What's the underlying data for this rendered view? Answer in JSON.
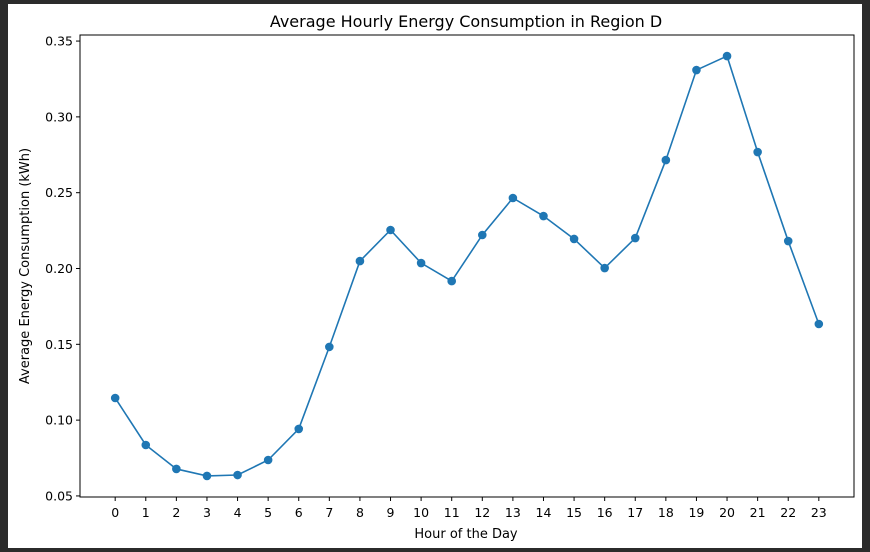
{
  "chart_data": {
    "type": "line",
    "title": "Average Hourly Energy Consumption in Region D",
    "xlabel": "Hour of the Day",
    "ylabel": "Average Energy Consumption (kWh)",
    "x": [
      0,
      1,
      2,
      3,
      4,
      5,
      6,
      7,
      8,
      9,
      10,
      11,
      12,
      13,
      14,
      15,
      16,
      17,
      18,
      19,
      20,
      21,
      22,
      23
    ],
    "values": [
      0.1146,
      0.0836,
      0.0678,
      0.0632,
      0.0638,
      0.0737,
      0.0942,
      0.1483,
      0.2049,
      0.2254,
      0.2036,
      0.1917,
      0.2221,
      0.2465,
      0.2346,
      0.2195,
      0.2003,
      0.2201,
      0.2715,
      0.3309,
      0.3401,
      0.2768,
      0.2181,
      0.1634
    ],
    "xticks": [
      "0",
      "1",
      "2",
      "3",
      "4",
      "5",
      "6",
      "7",
      "8",
      "9",
      "10",
      "11",
      "12",
      "13",
      "14",
      "15",
      "16",
      "17",
      "18",
      "19",
      "20",
      "21",
      "22",
      "23"
    ],
    "yticks": [
      "0.05",
      "0.10",
      "0.15",
      "0.20",
      "0.25",
      "0.30",
      "0.35"
    ],
    "xlim": [
      -1.15,
      24.15
    ],
    "ylim": [
      0.0493,
      0.354
    ],
    "grid": false,
    "marker": "circle",
    "color": "#1f77b4"
  }
}
